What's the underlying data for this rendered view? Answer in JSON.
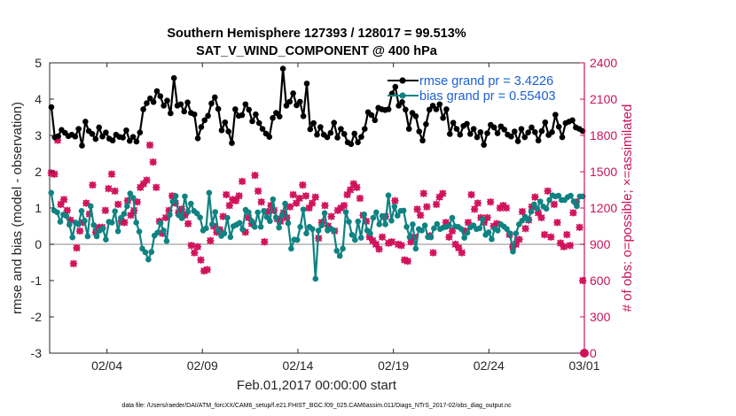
{
  "chart_data": {
    "type": "line",
    "title": "Southern Hemisphere 127393 / 128017 = 99.513%",
    "subtitle": "SAT_V_WIND_COMPONENT @ 400 hPa",
    "xlabel": "Feb.01,2017 00:00:00 start",
    "ylabel": "rmse and bias (model - observation)",
    "y2label": "# of obs: o=possible; ×=assimilated",
    "xlim": [
      0,
      28
    ],
    "ylim": [
      -3,
      5
    ],
    "y2lim": [
      0,
      2400
    ],
    "x_ticks": [
      3,
      8,
      13,
      18,
      23,
      28
    ],
    "x_tick_labels": [
      "02/04",
      "02/09",
      "02/14",
      "02/19",
      "02/24",
      "03/01"
    ],
    "y_ticks": [
      -3,
      -2,
      -1,
      0,
      1,
      2,
      3,
      4,
      5
    ],
    "y2_ticks": [
      0,
      300,
      600,
      900,
      1200,
      1500,
      1800,
      2100,
      2400
    ],
    "footnote": "data file: /Users/raeder/DAI/ATM_forcXX/CAM6_setup/f.e21.FHIST_BGC.f09_025.CAM6assim.011/Diags_NTrS_2017-02/obs_diag_output.nc",
    "colors": {
      "rmse": "#000000",
      "bias": "#0f8282",
      "obs": "#d1105a",
      "zero": "#b0b0b0"
    },
    "series": [
      {
        "name": "rmse",
        "legend": "rmse grand pr = 3.4226",
        "values": [
          3.78,
          2.95,
          2.98,
          3.15,
          3.07,
          2.98,
          3.02,
          2.97,
          3.18,
          2.72,
          3.38,
          3.12,
          3.04,
          2.9,
          3.22,
          2.97,
          3.08,
          2.91,
          2.86,
          3.02,
          2.96,
          2.94,
          3.14,
          2.85,
          2.96,
          2.83,
          3.08,
          3.72,
          3.89,
          4.02,
          3.92,
          4.22,
          4.08,
          3.82,
          3.96,
          3.61,
          4.58,
          3.82,
          3.86,
          3.66,
          3.91,
          3.62,
          3.58,
          2.92,
          3.23,
          3.42,
          3.54,
          3.88,
          4.05,
          3.73,
          3.14,
          3.36,
          3.11,
          2.79,
          3.72,
          3.54,
          3.56,
          3.86,
          3.71,
          3.39,
          3.58,
          3.34,
          3.18,
          3.05,
          2.96,
          3.48,
          3.62,
          3.52,
          4.84,
          3.82,
          3.93,
          4.16,
          3.83,
          3.93,
          3.53,
          4.43,
          3.17,
          3.34,
          3.02,
          3.23,
          3.02,
          2.95,
          3.07,
          3.35,
          2.94,
          3.18,
          3.04,
          2.81,
          2.76,
          3.05,
          2.81,
          2.96,
          3.18,
          3.64,
          3.56,
          3.42,
          3.76,
          3.72,
          3.7,
          3.72,
          4.15,
          4.34,
          3.82,
          3.92,
          3.71,
          3.18,
          3.62,
          3.53,
          3.11,
          2.86,
          3.31,
          3.71,
          3.82,
          3.72,
          3.86,
          3.48,
          3.72,
          3.04,
          3.35,
          3.18,
          3.02,
          3.26,
          3.32,
          3.04,
          3.18,
          2.95,
          3.09,
          2.74,
          3.06,
          3.29,
          3.22,
          3.06,
          3.25,
          3.16,
          3.02,
          2.97,
          3.11,
          2.84,
          3.18,
          2.95,
          3.08,
          3.22,
          3.09,
          2.86,
          3.12,
          3.36,
          3.01,
          3.09,
          3.57,
          3.24,
          2.95,
          3.34,
          3.38,
          3.42,
          3.22,
          3.18,
          3.12
        ]
      },
      {
        "name": "bias",
        "legend": "bias grand pr = 0.55403",
        "values": [
          1.42,
          0.93,
          0.88,
          0.62,
          0.82,
          0.78,
          0.54,
          0.19,
          0.6,
          0.55,
          0.92,
          0.65,
          0.22,
          1.05,
          0.53,
          0.22,
          0.38,
          0.44,
          0.13,
          0.62,
          0.6,
          0.91,
          0.36,
          0.73,
          0.84,
          1.05,
          1.4,
          1.28,
          0.6,
          0.35,
          -0.12,
          -0.22,
          -0.42,
          -0.21,
          0.24,
          0.32,
          0.58,
          0.38,
          0.09,
          0.81,
          1.18,
          1.33,
          0.8,
          0.72,
          1.32,
          0.89,
          1.12,
          0.92,
          0.85,
          0.74,
          0.38,
          0.44,
          1.42,
          0.55,
          0.89,
          0.38,
          0.23,
          0.3,
          0.73,
          0.2,
          0.5,
          0.54,
          0.59,
          0.41,
          0.95,
          0.88,
          0.64,
          0.48,
          0.88,
          0.48,
          0.92,
          0.75,
          0.64,
          1.24,
          0.74,
          0.46,
          0.8,
          1.12,
          0.58,
          -0.12,
          0.13,
          0.12,
          0.48,
          0.96,
          0.3,
          0.48,
          0.42,
          -0.95,
          0.38,
          0.52,
          0.86,
          0.38,
          0.43,
          0.38,
          -0.18,
          -0.32,
          -0.12,
          0.89,
          0.62,
          0.26,
          0.12,
          0.63,
          0.18,
          0.82,
          0.38,
          0.3,
          0.73,
          0.88,
          0.55,
          0.78,
          0.55,
          1.35,
          0.65,
          1.04,
          0.79,
          0.92,
          0.93,
          0.48,
          0.2,
          0.55,
          -0.12,
          0.42,
          0.38,
          0.52,
          0.2,
          0.19,
          0.44,
          0.56,
          0.42,
          0.46,
          0.48,
          0.51,
          0.73,
          0.49,
          0.48,
          0.42,
          0.18,
          0.32,
          0.47,
          0.52,
          0.42,
          0.44,
          0.69,
          0.26,
          0.33,
          0.14,
          0.43,
          0.38,
          0.55,
          0.49,
          0.42,
          0.3,
          -0.2,
          0.3,
          0.55,
          0.65,
          0.76,
          0.67,
          0.9,
          1.1,
          0.98,
          1.18,
          1.04,
          0.98,
          1.22,
          1.35,
          1.32,
          1.34,
          1.22,
          1.22,
          1.3,
          1.34,
          1.18,
          1.05,
          1.32,
          1.32
        ]
      },
      {
        "name": "possible",
        "marker": "o",
        "values": [
          1490,
          1480,
          1760,
          1230,
          1270,
          1180,
          1100,
          740,
          870,
          1010,
          1080,
          1240,
          1150,
          1390,
          1000,
          1040,
          1040,
          1180,
          1360,
          1480,
          1340,
          1230,
          1090,
          1080,
          1260,
          1140,
          1180,
          1250,
          1370,
          1400,
          1430,
          1720,
          1580,
          1370,
          1090,
          990,
          1120,
          1180,
          1300,
          1240,
          1160,
          1190,
          1140,
          1070,
          890,
          830,
          880,
          770,
          680,
          690,
          930,
          1050,
          1000,
          1020,
          1130,
          1310,
          1220,
          1270,
          1260,
          1300,
          1420,
          1000,
          1120,
          1070,
          1470,
          1340,
          1250,
          920,
          1170,
          1220,
          1180,
          1110,
          1090,
          1160,
          1120,
          1210,
          1310,
          1240,
          1280,
          1390,
          1300,
          1200,
          1240,
          1290,
          950,
          1080,
          1220,
          1050,
          1130,
          1010,
          1180,
          1200,
          1220,
          1310,
          1350,
          1400,
          1370,
          1280,
          1140,
          1090,
          960,
          930,
          900,
          860,
          960,
          1130,
          910,
          920,
          1260,
          900,
          890,
          770,
          760,
          920,
          960,
          1190,
          1140,
          1320,
          1210,
          970,
          830,
          1230,
          1290,
          1320,
          1080,
          960,
          1010,
          900,
          870,
          830,
          1010,
          1080,
          1310,
          1190,
          1240,
          1120,
          1080,
          1120,
          1250,
          1050,
          1070,
          1200,
          1220,
          1200,
          980,
          880,
          900,
          940,
          1170,
          1030,
          1100,
          1210,
          1290,
          1160,
          1120,
          980,
          1340,
          960,
          1230,
          1080,
          910,
          880,
          980,
          890,
          1160,
          1250,
          1040,
          600
        ]
      },
      {
        "name": "assimilated",
        "marker": "x",
        "values": [
          1490,
          1480,
          1760,
          1230,
          1270,
          1180,
          1100,
          740,
          870,
          1010,
          1080,
          1240,
          1150,
          1390,
          1000,
          1040,
          1040,
          1180,
          1360,
          1480,
          1340,
          1230,
          1090,
          1080,
          1260,
          1140,
          1180,
          1250,
          1370,
          1400,
          1430,
          1720,
          1580,
          1370,
          1090,
          990,
          1120,
          1180,
          1300,
          1240,
          1160,
          1190,
          1140,
          1070,
          890,
          830,
          880,
          770,
          680,
          690,
          930,
          1050,
          1000,
          1020,
          1130,
          1310,
          1220,
          1270,
          1260,
          1300,
          1420,
          1000,
          1120,
          1070,
          1470,
          1340,
          1250,
          920,
          1170,
          1220,
          1180,
          1110,
          1090,
          1160,
          1120,
          1210,
          1310,
          1240,
          1280,
          1390,
          1300,
          1200,
          1240,
          1290,
          950,
          1080,
          1220,
          1050,
          1130,
          1010,
          1180,
          1200,
          1220,
          1310,
          1350,
          1400,
          1370,
          1280,
          1140,
          1090,
          960,
          930,
          900,
          860,
          960,
          1130,
          910,
          920,
          1260,
          900,
          890,
          770,
          760,
          920,
          960,
          1190,
          1140,
          1320,
          1210,
          970,
          830,
          1230,
          1290,
          1320,
          1080,
          960,
          1010,
          900,
          870,
          830,
          1010,
          1080,
          1310,
          1190,
          1240,
          1120,
          1080,
          1120,
          1250,
          1050,
          1070,
          1200,
          1220,
          1200,
          980,
          880,
          900,
          940,
          1170,
          1030,
          1100,
          1210,
          1290,
          1160,
          1120,
          980,
          1340,
          960,
          1230,
          1080,
          910,
          880,
          980,
          890,
          1160,
          1250,
          1040,
          600
        ]
      }
    ]
  }
}
